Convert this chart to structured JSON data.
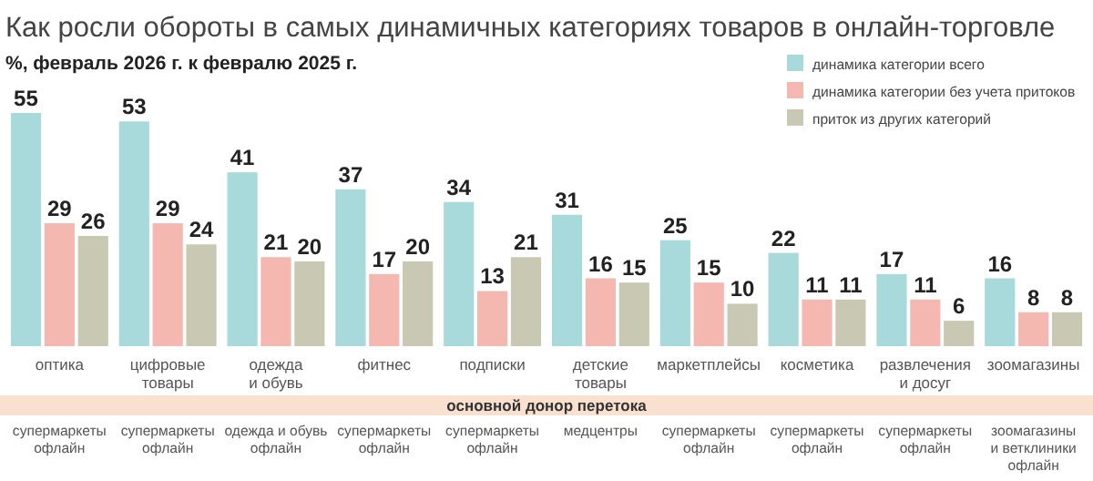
{
  "chart_data": {
    "type": "bar",
    "title": "Как росли обороты в самых динамичных категориях товаров в онлайн-торговле",
    "subtitle": "%, февраль 2026 г. к февралю 2025 г.",
    "categories": [
      "оптика",
      "цифровые\nтовары",
      "одежда\nи обувь",
      "фитнес",
      "подписки",
      "детские\nтовары",
      "маркетплейсы",
      "косметика",
      "развлечения\nи досуг",
      "зоомагазины"
    ],
    "series": [
      {
        "name": "динамика категории всего",
        "color": "#a8dadb",
        "values": [
          55,
          53,
          41,
          37,
          34,
          31,
          25,
          22,
          17,
          16
        ]
      },
      {
        "name": "динамика категории без учета притоков",
        "color": "#f4b8b0",
        "values": [
          29,
          29,
          21,
          17,
          13,
          16,
          15,
          11,
          11,
          8
        ]
      },
      {
        "name": "приток из других категорий",
        "color": "#c9c9b3",
        "values": [
          26,
          24,
          20,
          20,
          21,
          15,
          10,
          11,
          6,
          8
        ]
      }
    ],
    "data_labels": true,
    "legend": "top right",
    "annotations": [
      "основной донор перетока",
      "супермаркеты\nофлайн",
      "супермаркеты\nофлайн",
      "одежда и обувь\nофлайн",
      "супермаркеты\nофлайн",
      "супермаркеты\nофлайн",
      "медцентры",
      "супермаркеты\nофлайн",
      "супермаркеты\nофлайн",
      "супермаркеты\nофлайн",
      "зоомагазины\nи ветклиники\nофлайн"
    ]
  }
}
